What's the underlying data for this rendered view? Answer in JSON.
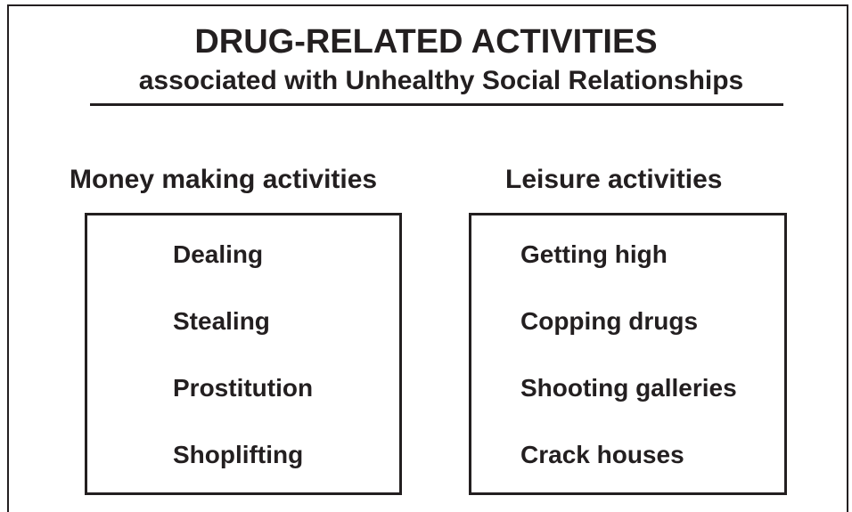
{
  "title": "DRUG-RELATED ACTIVITIES",
  "subtitle": "associated with Unhealthy Social Relationships",
  "groups": [
    {
      "heading": "Money making activities",
      "items": [
        "Dealing",
        "Stealing",
        "Prostitution",
        "Shoplifting"
      ]
    },
    {
      "heading": "Leisure activities",
      "items": [
        "Getting high",
        "Copping drugs",
        "Shooting galleries",
        "Crack houses"
      ]
    }
  ]
}
